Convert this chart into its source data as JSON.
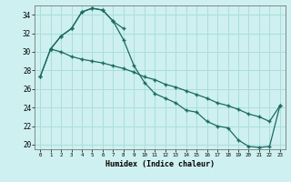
{
  "xlabel": "Humidex (Indice chaleur)",
  "background_color": "#cff0f0",
  "grid_color": "#aadddd",
  "line_color": "#1a6b60",
  "xlim": [
    -0.5,
    23.5
  ],
  "ylim": [
    19.5,
    35.0
  ],
  "yticks": [
    20,
    22,
    24,
    26,
    28,
    30,
    32,
    34
  ],
  "xticks": [
    0,
    1,
    2,
    3,
    4,
    5,
    6,
    7,
    8,
    9,
    10,
    11,
    12,
    13,
    14,
    15,
    16,
    17,
    18,
    19,
    20,
    21,
    22,
    23
  ],
  "line1_x": [
    0,
    1,
    2,
    3,
    4,
    5,
    6,
    7,
    8
  ],
  "line1_y": [
    27.3,
    30.3,
    31.7,
    32.5,
    34.3,
    34.7,
    34.5,
    33.3,
    32.5
  ],
  "line2_x": [
    1,
    2,
    3,
    4,
    5,
    6,
    7,
    8,
    9,
    10,
    11,
    12,
    13,
    14,
    15,
    16,
    17,
    18,
    19,
    20,
    21,
    22,
    23
  ],
  "line2_y": [
    30.3,
    30.0,
    29.5,
    29.2,
    29.0,
    28.8,
    28.5,
    28.2,
    27.8,
    27.3,
    27.0,
    26.5,
    26.2,
    25.8,
    25.4,
    25.0,
    24.5,
    24.2,
    23.8,
    23.3,
    23.0,
    22.5,
    24.2
  ],
  "line3_x": [
    0,
    1,
    2,
    3,
    4,
    5,
    6,
    7,
    8,
    9,
    10,
    11,
    12,
    13,
    14,
    15,
    16,
    17,
    18,
    19,
    20,
    21,
    22,
    23
  ],
  "line3_y": [
    27.3,
    30.3,
    31.7,
    32.5,
    34.3,
    34.7,
    34.5,
    33.3,
    31.3,
    28.5,
    26.7,
    25.5,
    25.0,
    24.5,
    23.7,
    23.5,
    22.5,
    22.0,
    21.8,
    20.5,
    19.8,
    19.7,
    19.8,
    24.2
  ]
}
